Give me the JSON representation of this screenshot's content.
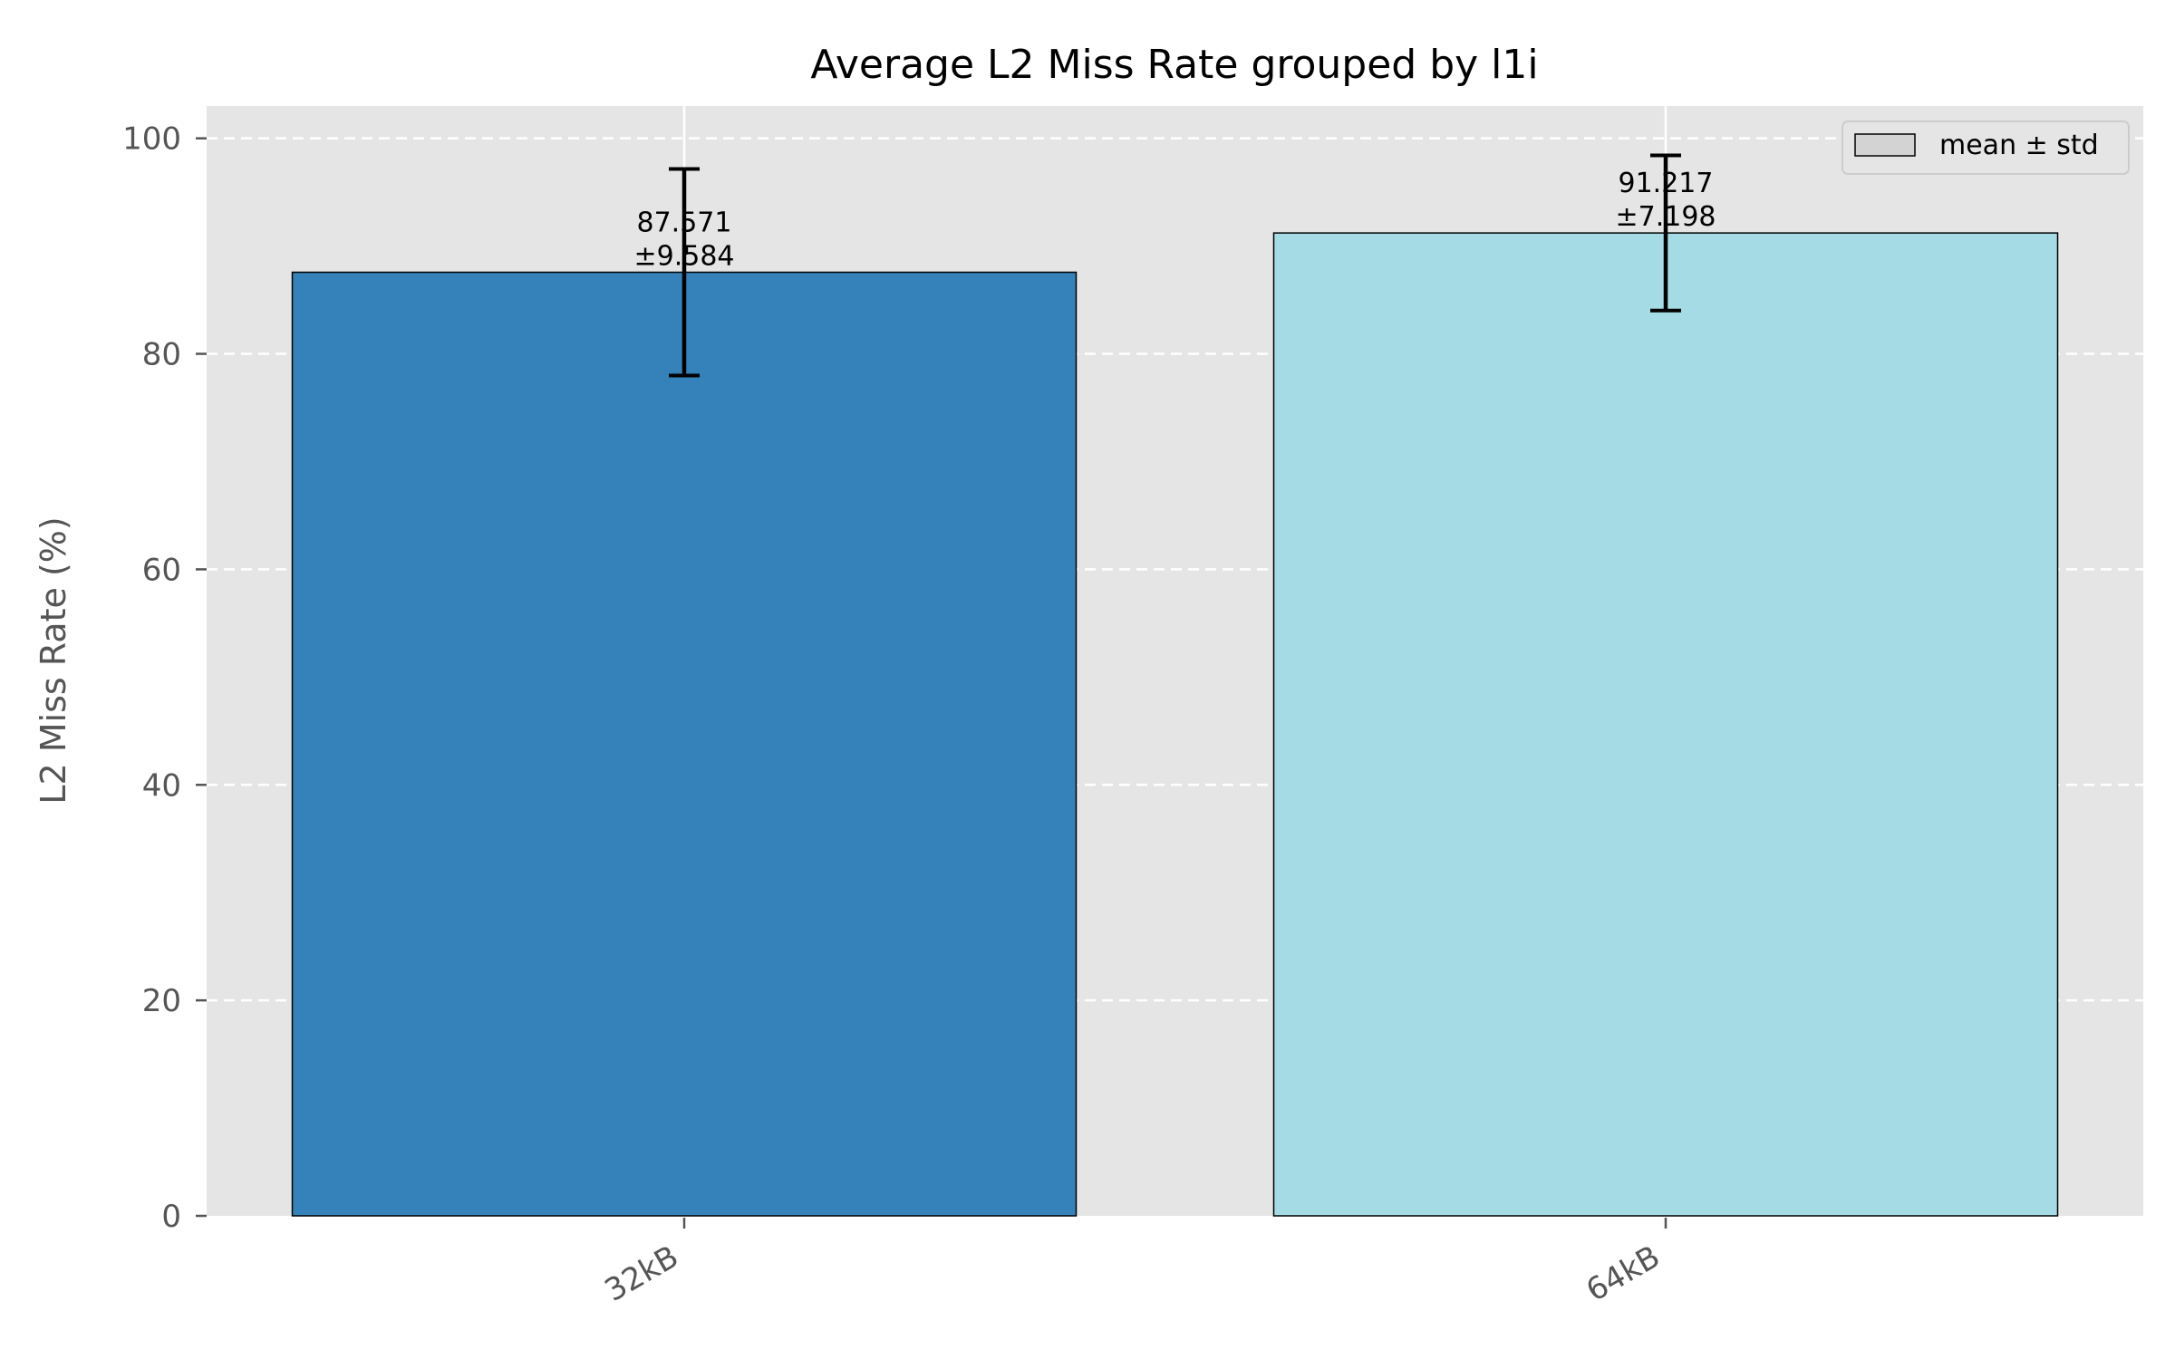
{
  "chart_data": {
    "type": "bar",
    "title": "Average L2 Miss Rate grouped by l1i",
    "xlabel": "",
    "ylabel": "L2 Miss Rate (%)",
    "ylim": [
      0,
      103
    ],
    "yticks": [
      0,
      20,
      40,
      60,
      80,
      100
    ],
    "grid": "y-dashed",
    "categories": [
      "32kB",
      "64kB"
    ],
    "values": [
      87.571,
      91.217
    ],
    "errors": [
      9.584,
      7.198
    ],
    "value_labels": [
      "87.571",
      "91.217"
    ],
    "error_labels": [
      "±9.584",
      "±7.198"
    ],
    "bar_colors": [
      "#3482b9",
      "#a5dbe4"
    ],
    "plot_background": "#e5e5e5",
    "legend": {
      "position": "top-right",
      "label": "mean ± std",
      "swatch_color": "#d3d3d3"
    }
  }
}
